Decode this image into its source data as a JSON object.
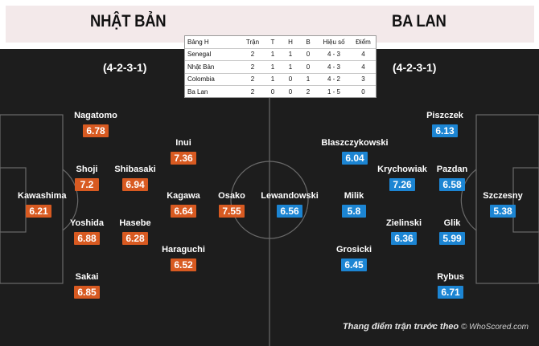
{
  "teams": {
    "left": {
      "name": "NHẬT BẢN",
      "formation": "(4-2-3-1)"
    },
    "right": {
      "name": "BA LAN",
      "formation": "(4-2-3-1)"
    }
  },
  "standings": {
    "headers": [
      "Bảng H",
      "Trận",
      "T",
      "H",
      "B",
      "Hiệu số",
      "Điểm"
    ],
    "rows": [
      [
        "Senegal",
        "2",
        "1",
        "1",
        "0",
        "4 - 3",
        "4"
      ],
      [
        "Nhật Bản",
        "2",
        "1",
        "1",
        "0",
        "4 - 3",
        "4"
      ],
      [
        "Colombia",
        "2",
        "1",
        "0",
        "1",
        "4 - 2",
        "3"
      ],
      [
        "Ba Lan",
        "2",
        "0",
        "0",
        "2",
        "1 - 5",
        "0"
      ]
    ]
  },
  "players_left": [
    {
      "name": "Nagatomo",
      "rating": "6.78"
    },
    {
      "name": "Inui",
      "rating": "7.36"
    },
    {
      "name": "Shoji",
      "rating": "7.2"
    },
    {
      "name": "Shibasaki",
      "rating": "6.94"
    },
    {
      "name": "Kawashima",
      "rating": "6.21"
    },
    {
      "name": "Kagawa",
      "rating": "6.64"
    },
    {
      "name": "Osako",
      "rating": "7.55"
    },
    {
      "name": "Yoshida",
      "rating": "6.88"
    },
    {
      "name": "Hasebe",
      "rating": "6.28"
    },
    {
      "name": "Haraguchi",
      "rating": "6.52"
    },
    {
      "name": "Sakai",
      "rating": "6.85"
    }
  ],
  "players_right": [
    {
      "name": "Piszczek",
      "rating": "6.13"
    },
    {
      "name": "Blaszczykowski",
      "rating": "6.04"
    },
    {
      "name": "Krychowiak",
      "rating": "7.26"
    },
    {
      "name": "Pazdan",
      "rating": "6.58"
    },
    {
      "name": "Lewandowski",
      "rating": "6.56"
    },
    {
      "name": "Milik",
      "rating": "5.8"
    },
    {
      "name": "Szczesny",
      "rating": "5.38"
    },
    {
      "name": "Zielinski",
      "rating": "6.36"
    },
    {
      "name": "Glik",
      "rating": "5.99"
    },
    {
      "name": "Grosicki",
      "rating": "6.45"
    },
    {
      "name": "Rybus",
      "rating": "6.71"
    }
  ],
  "caption": {
    "text": "Thang điểm trận trước theo",
    "source": "© WhoScored.com"
  },
  "colors": {
    "japan_rating": "#d85a21",
    "poland_rating": "#1c85d3",
    "pitch": "#1d1d1d",
    "header_band": "#f3e9ea"
  }
}
